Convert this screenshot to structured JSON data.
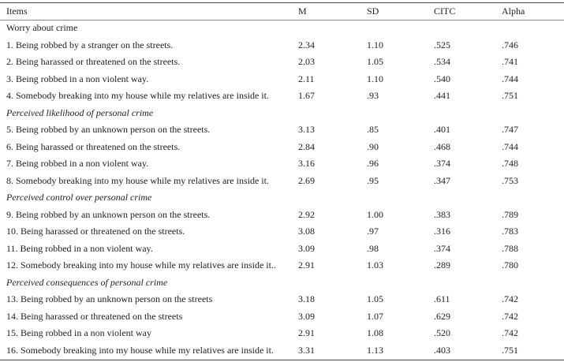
{
  "table": {
    "header": [
      "Items",
      "M",
      "SD",
      "CITC",
      "Alpha"
    ],
    "sections": [
      {
        "title": "Worry about crime",
        "rows": [
          [
            "1. Being robbed by a stranger on the streets.",
            "2.34",
            "1.10",
            ".525",
            ".746"
          ],
          [
            "2. Being harassed or threatened on the streets.",
            "2.03",
            "1.05",
            ".534",
            ".741"
          ],
          [
            "3. Being robbed in a non violent way.",
            "2.11",
            "1.10",
            ".540",
            ".744"
          ],
          [
            "4. Somebody breaking into my house while my relatives are inside it.",
            "1.67",
            ".93",
            ".441",
            ".751"
          ]
        ]
      },
      {
        "title": "Perceived likelihood of personal crime",
        "rows": [
          [
            "5. Being robbed by an unknown person on the streets.",
            "3.13",
            ".85",
            ".401",
            ".747"
          ],
          [
            "6. Being harassed or threatened on the streets.",
            "2.84",
            ".90",
            ".468",
            ".744"
          ],
          [
            "7. Being robbed in a non violent way.",
            "3.16",
            ".96",
            ".374",
            ".748"
          ],
          [
            "8. Somebody breaking into my house while my relatives are inside it.",
            "2.69",
            ".95",
            ".347",
            ".753"
          ]
        ]
      },
      {
        "title": "Perceived control over personal crime",
        "rows": [
          [
            "9. Being robbed by an unknown person on the streets.",
            "2.92",
            "1.00",
            ".383",
            ".789"
          ],
          [
            "10. Being harassed or threatened on the streets.",
            "3.08",
            ".97",
            ".316",
            ".783"
          ],
          [
            "11. Being robbed in a non violent way.",
            "3.09",
            ".98",
            ".374",
            ".788"
          ],
          [
            "12. Somebody breaking into my house while my relatives are inside it..",
            "2.91",
            "1.03",
            ".289",
            ".780"
          ]
        ]
      },
      {
        "title": "Perceived consequences of personal crime",
        "rows": [
          [
            "13. Being robbed by an unknown person on the streets",
            "3.18",
            "1.05",
            ".611",
            ".742"
          ],
          [
            "14. Being harassed or threatened on the streets",
            "3.09",
            "1.07",
            ".629",
            ".742"
          ],
          [
            "15. Being robbed in a non violent way",
            "2.91",
            "1.08",
            ".520",
            ".742"
          ],
          [
            "16. Somebody breaking into my house while my relatives are inside it.",
            "3.31",
            "1.13",
            ".403",
            ".751"
          ]
        ]
      }
    ]
  }
}
